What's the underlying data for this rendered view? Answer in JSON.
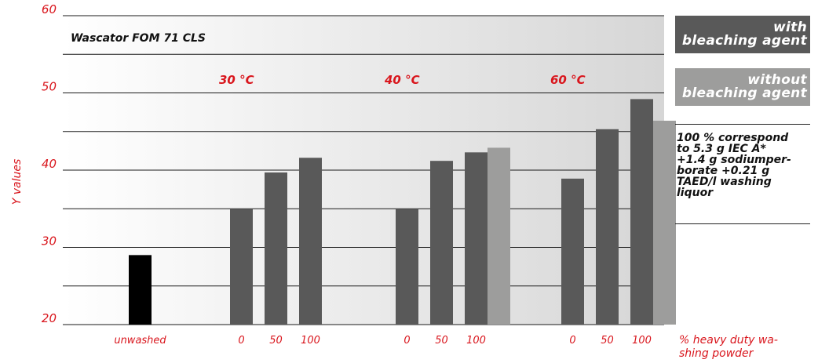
{
  "chart_data": {
    "type": "bar",
    "title": "Wascator FOM 71 CLS",
    "ylabel": "Y values",
    "xlabel_lines": [
      "% heavy duty wa-",
      "shing powder"
    ],
    "ylim": [
      20,
      60
    ],
    "yticks": [
      20,
      30,
      40,
      50,
      60
    ],
    "grid": true,
    "legend_position": "right",
    "series": [
      {
        "name": "with bleaching agent",
        "color": "#595959"
      },
      {
        "name": "without bleaching agent",
        "color": "#9d9d9c"
      }
    ],
    "groups": [
      {
        "label": "",
        "categories": [
          {
            "label": "unwashed",
            "values": [
              {
                "value": 29,
                "color": "#000000"
              }
            ]
          }
        ]
      },
      {
        "label": "30 °C",
        "categories": [
          {
            "label": "0",
            "values": [
              {
                "value": 35,
                "series": 0
              }
            ]
          },
          {
            "label": "50",
            "values": [
              {
                "value": 39.7,
                "series": 0
              }
            ]
          },
          {
            "label": "100",
            "values": [
              {
                "value": 41.6,
                "series": 0
              }
            ]
          }
        ]
      },
      {
        "label": "40 °C",
        "categories": [
          {
            "label": "0",
            "values": [
              {
                "value": 35,
                "series": 0
              }
            ]
          },
          {
            "label": "50",
            "values": [
              {
                "value": 41.2,
                "series": 0
              }
            ]
          },
          {
            "label": "100",
            "values": [
              {
                "value": 42.3,
                "series": 0
              },
              {
                "value": 42.9,
                "series": 1
              }
            ]
          }
        ]
      },
      {
        "label": "60 °C",
        "categories": [
          {
            "label": "0",
            "values": [
              {
                "value": 38.9,
                "series": 0
              }
            ]
          },
          {
            "label": "50",
            "values": [
              {
                "value": 45.3,
                "series": 0
              }
            ]
          },
          {
            "label": "100",
            "values": [
              {
                "value": 49.2,
                "series": 0
              },
              {
                "value": 46.4,
                "series": 1
              }
            ]
          }
        ]
      }
    ]
  },
  "legend": {
    "with_lines": [
      "with",
      "bleaching agent"
    ],
    "without_lines": [
      "without",
      "bleaching agent"
    ]
  },
  "note_lines": [
    "100 % correspond",
    "to 5.3 g IEC A*",
    "+1.4 g sodiumper-",
    "borate +0.21 g",
    "TAED/l washing",
    "liquor"
  ]
}
